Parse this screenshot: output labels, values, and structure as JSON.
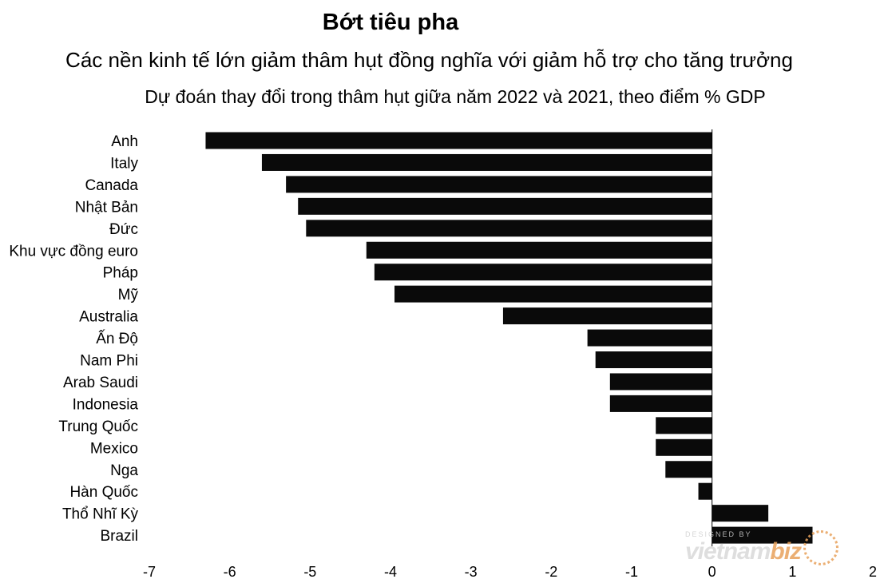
{
  "title": "Bớt tiêu pha",
  "subtitle": "Các nền kinh tế lớn giảm thâm hụt đồng nghĩa với giảm hỗ trợ cho tăng trưởng",
  "caption": "Dự đoán thay đổi trong thâm hụt giữa năm 2022 và 2021, theo điểm % GDP",
  "watermark": {
    "small": "DESIGNED BY",
    "main_a": "vietnam",
    "main_b": "biz"
  },
  "colors": {
    "bar": "#0a0a0a",
    "background": "#ffffff",
    "accent": "#e8a25c"
  },
  "chart_data": {
    "type": "bar",
    "orientation": "horizontal",
    "categories": [
      "Anh",
      "Italy",
      "Canada",
      "Nhật Bản",
      "Đức",
      "Khu vực đồng euro",
      "Pháp",
      "Mỹ",
      "Australia",
      "Ấn Độ",
      "Nam Phi",
      "Arab Saudi",
      "Indonesia",
      "Trung Quốc",
      "Mexico",
      "Nga",
      "Hàn Quốc",
      "Thổ Nhĩ Kỳ",
      "Brazil"
    ],
    "values": [
      -6.3,
      -5.6,
      -5.3,
      -5.15,
      -5.05,
      -4.3,
      -4.2,
      -3.95,
      -2.6,
      -1.55,
      -1.45,
      -1.27,
      -1.27,
      -0.7,
      -0.7,
      -0.58,
      -0.17,
      0.7,
      1.25
    ],
    "xlim": [
      -7,
      2
    ],
    "xticks": [
      "-7",
      "-6",
      "-5",
      "-4",
      "-3",
      "-2",
      "-1",
      "0",
      "1",
      "2"
    ],
    "grid": false,
    "legend": "none"
  }
}
